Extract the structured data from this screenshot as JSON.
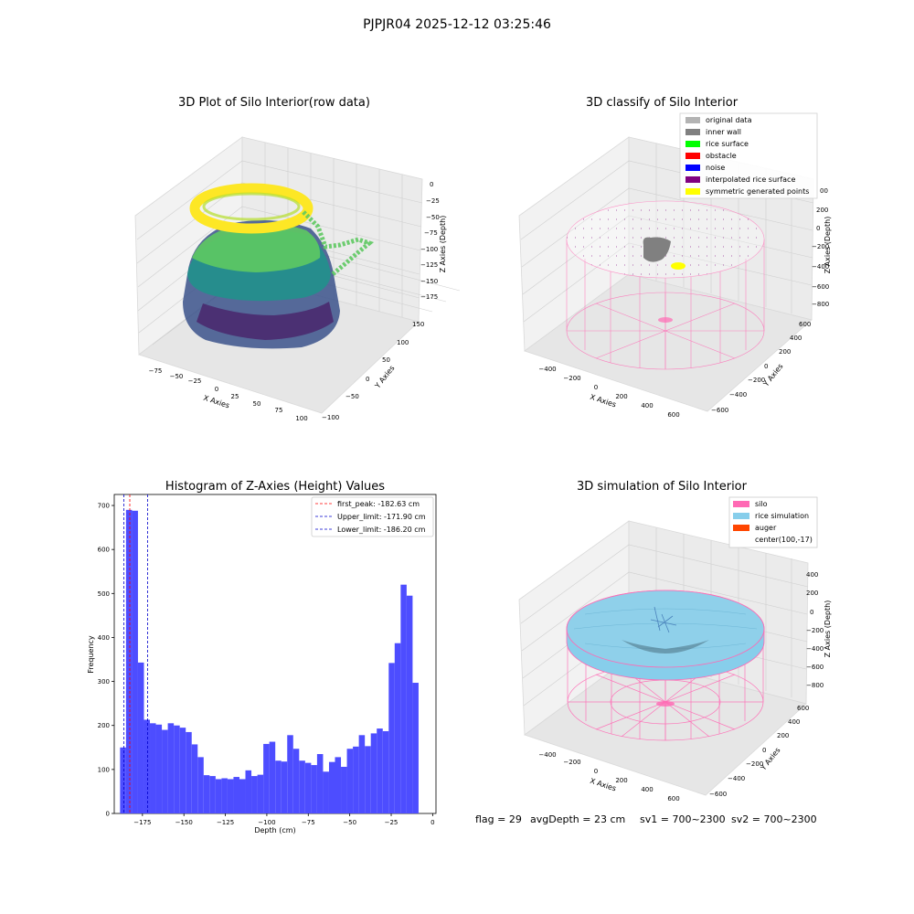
{
  "figure": {
    "suptitle": "PJPJR04 2025-12-12 03:25:46",
    "status": {
      "flag": "flag = 29",
      "avg_depth": "avgDepth = 23 cm",
      "sv1": "sv1 = 700~2300",
      "sv2": "sv2 = 700~2300"
    }
  },
  "colors": {
    "histogram_bar": "#4d4dff",
    "first_peak_line": "#ff0000",
    "upper_limit_line": "#0000cc",
    "lower_limit_line": "#0000cc",
    "silo": "#ff69b4",
    "rice_simulation": "#87ceeb",
    "auger": "#ff4500",
    "original_data": "#b3b3b3",
    "inner_wall": "#808080",
    "rice_surface": "#00ff00",
    "obstacle": "#ff0000",
    "noise": "#0000ff",
    "interpolated_rice_surface": "#800080",
    "symmetric_generated_points": "#ffff00"
  },
  "chart_data": [
    {
      "type": "scatter",
      "title": "3D Plot of Silo Interior(row data)",
      "xlabel": "X Axies",
      "ylabel": "Y Axies",
      "zlabel": "Z Axies (Depth)",
      "xticks": [
        "−75",
        "−50",
        "−25",
        "0",
        "25",
        "50",
        "75",
        "100"
      ],
      "yticks": [
        "−100",
        "−50",
        "0",
        "50",
        "100",
        "150"
      ],
      "zticks": [
        "0",
        "−25",
        "−50",
        "−75",
        "−100",
        "−125",
        "−150",
        "−175"
      ],
      "xlim": [
        -90,
        105
      ],
      "ylim": [
        -110,
        160
      ],
      "zlim": [
        -190,
        0
      ],
      "colormap": "viridis"
    },
    {
      "type": "scatter",
      "title": "3D classify of Silo Interior",
      "xlabel": "X Axies",
      "ylabel": "Y Axies",
      "zlabel": "Z Axies (Depth)",
      "xticks": [
        "−400",
        "−200",
        "0",
        "200",
        "400",
        "600"
      ],
      "yticks": [
        "−600",
        "−400",
        "−200",
        "0",
        "200",
        "400",
        "600"
      ],
      "zticks": [
        "200",
        "0",
        "−200",
        "−400",
        "−600",
        "−800"
      ],
      "zticks_partial": [
        "00"
      ],
      "legend": [
        "original data",
        "inner wall",
        "rice surface",
        "obstacle",
        "noise",
        "interpolated rice surface",
        "symmetric generated points"
      ],
      "legend_loc": "upper right"
    },
    {
      "type": "bar",
      "title": "Histogram of Z-Axies (Height) Values",
      "xlabel": "Depth (cm)",
      "ylabel": "Frequency",
      "xlim": [
        -192,
        2
      ],
      "ylim": [
        0,
        725
      ],
      "xticks": [
        -175,
        -150,
        -125,
        -100,
        -75,
        -50,
        -25,
        0
      ],
      "xtick_labels": [
        "−175",
        "−150",
        "−125",
        "−100",
        "−75",
        "−50",
        "−25",
        "0"
      ],
      "yticks": [
        0,
        100,
        200,
        300,
        400,
        500,
        600,
        700
      ],
      "bin_start": -188.5,
      "bin_width": 3.6,
      "values": [
        150,
        690,
        688,
        343,
        213,
        205,
        202,
        190,
        205,
        200,
        195,
        185,
        157,
        128,
        87,
        85,
        78,
        80,
        78,
        83,
        78,
        98,
        85,
        88,
        158,
        163,
        120,
        118,
        178,
        147,
        120,
        115,
        110,
        135,
        95,
        117,
        128,
        106,
        147,
        152,
        178,
        153,
        182,
        193,
        187,
        342,
        387,
        520,
        495,
        297
      ],
      "vlines": [
        {
          "label": "first_peak: -182.63 cm",
          "x": -182.63,
          "color": "#ff0000"
        },
        {
          "label": "Upper_limit: -171.90 cm",
          "x": -171.9,
          "color": "#0000cc"
        },
        {
          "label": "Lower_limit: -186.20 cm",
          "x": -186.2,
          "color": "#0000cc"
        }
      ],
      "legend_loc": "upper right"
    },
    {
      "type": "scatter",
      "title": "3D simulation of Silo Interior",
      "xlabel": "X Axies",
      "ylabel": "Y Axies",
      "zlabel": "Z Axies (Depth)",
      "xticks": [
        "−400",
        "−200",
        "0",
        "200",
        "400",
        "600"
      ],
      "yticks": [
        "−600",
        "−400",
        "−200",
        "0",
        "200",
        "400",
        "600"
      ],
      "zticks": [
        "400",
        "200",
        "0",
        "−200",
        "−400",
        "−600",
        "−800"
      ],
      "legend": [
        "silo",
        "rice simulation",
        "auger",
        "center(100,-17)"
      ],
      "legend_loc": "upper right"
    }
  ]
}
